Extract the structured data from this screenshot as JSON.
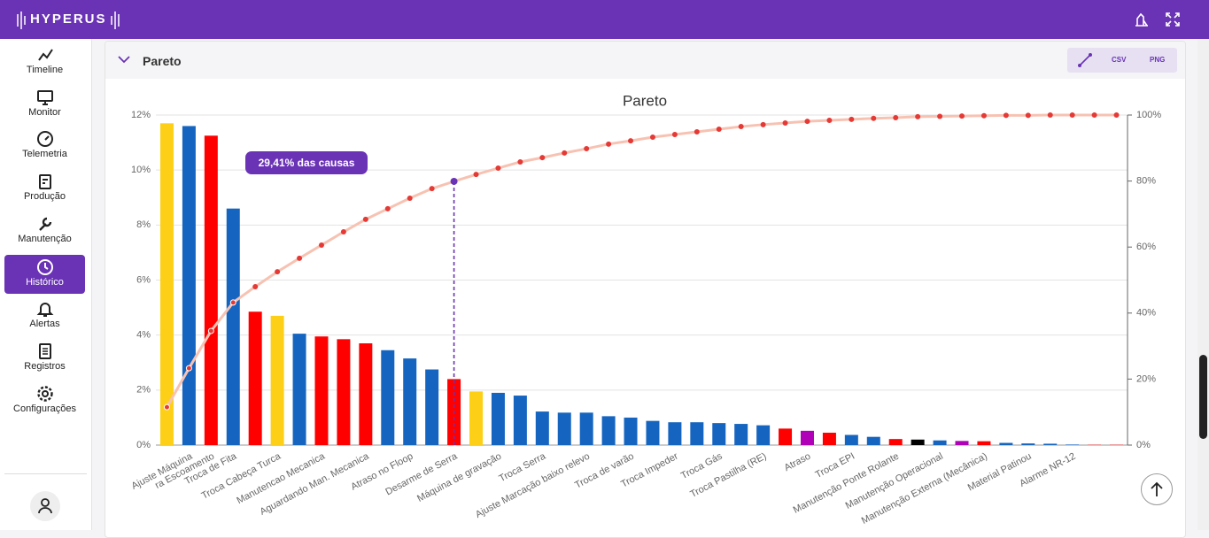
{
  "header": {
    "logo": "HYPERUS"
  },
  "sidebar": {
    "items": [
      "Timeline",
      "Monitor",
      "Telemetria",
      "Produção",
      "Manutenção",
      "Histórico",
      "Alertas",
      "Registros",
      "Configurações"
    ],
    "active": "Histórico"
  },
  "panel": {
    "title": "Pareto",
    "buttons": [
      "CSV",
      "PNG"
    ]
  },
  "chart_data": {
    "type": "pareto",
    "title": "Pareto",
    "categories": [
      null,
      "Ajuste Máquina",
      "ra Escoamento",
      "Troca de Fita",
      null,
      "Troca Cabeça Turca",
      null,
      "Manutencao Mecanica",
      null,
      "Aguardando Man. Mecanica",
      null,
      "Atraso no Floop",
      null,
      "Desarme de Serra",
      null,
      "Máquina de gravação",
      null,
      "Troca Serra",
      null,
      "Ajuste Marcação baixo relevo",
      null,
      "Troca de varão",
      null,
      "Troca Impeder",
      null,
      "Troca Gás",
      null,
      "Troca Pastilha (RE)",
      null,
      "Atraso",
      null,
      "Troca EPI",
      null,
      "Manutenção Ponte Rolante",
      null,
      "Manutenção Operacional",
      null,
      "Manutenção Externa (Mecânica)",
      null,
      "Material Patinou",
      null,
      "Alarme NR-12",
      null,
      null
    ],
    "series": [
      {
        "type": "bar",
        "values": [
          11.7,
          11.6,
          11.25,
          8.6,
          4.85,
          4.7,
          4.05,
          3.95,
          3.85,
          3.7,
          3.45,
          3.15,
          2.75,
          2.4,
          1.95,
          1.9,
          1.8,
          1.22,
          1.18,
          1.18,
          1.05,
          1.0,
          0.88,
          0.83,
          0.83,
          0.8,
          0.77,
          0.72,
          0.6,
          0.52,
          0.45,
          0.37,
          0.3,
          0.22,
          0.2,
          0.17,
          0.15,
          0.14,
          0.08,
          0.06,
          0.05,
          0.02,
          0.01,
          0.01
        ],
        "colors": [
          "#fdd017",
          "#1565c0",
          "#ff0000",
          "#1565c0",
          "#ff0000",
          "#fdd017",
          "#1565c0",
          "#ff0000",
          "#ff0000",
          "#ff0000",
          "#1565c0",
          "#1565c0",
          "#1565c0",
          "#ff0000",
          "#fdd017",
          "#1565c0",
          "#1565c0",
          "#1565c0",
          "#1565c0",
          "#1565c0",
          "#1565c0",
          "#1565c0",
          "#1565c0",
          "#1565c0",
          "#1565c0",
          "#1565c0",
          "#1565c0",
          "#1565c0",
          "#ff0000",
          "#b000b8",
          "#ff0000",
          "#1565c0",
          "#1565c0",
          "#ff0000",
          "#000000",
          "#1565c0",
          "#b000b8",
          "#ff0000",
          "#1565c0",
          "#1565c0",
          "#1565c0",
          "#1565c0",
          "#ff0000",
          "#ff0000"
        ]
      },
      {
        "type": "line",
        "axis": "y2",
        "color": "#f7c2b2",
        "point_color": "#e53935",
        "values": [
          11.5,
          23.3,
          34.6,
          43.2,
          48,
          52.5,
          56.6,
          60.6,
          64.6,
          68.4,
          71.6,
          74.8,
          77.7,
          79.9,
          82,
          83.9,
          85.8,
          87.1,
          88.5,
          89.8,
          91.2,
          92.2,
          93.3,
          94.1,
          94.9,
          95.7,
          96.5,
          97.1,
          97.6,
          98.1,
          98.4,
          98.7,
          99,
          99.2,
          99.5,
          99.6,
          99.7,
          99.8,
          99.9,
          99.9,
          100,
          100,
          100,
          100
        ]
      }
    ],
    "annotation": "29,41% das causas",
    "ylim": [
      0,
      12
    ],
    "yticks": [
      {
        "value": 0,
        "label": "0%"
      },
      {
        "value": 2,
        "label": "2%"
      },
      {
        "value": 4,
        "label": "4%"
      },
      {
        "value": 6,
        "label": "6%"
      },
      {
        "value": 8,
        "label": "8%"
      },
      {
        "value": 10,
        "label": "10%"
      },
      {
        "value": 12,
        "label": "12%"
      }
    ],
    "y2lim": [
      0,
      100
    ],
    "y2ticks": [
      {
        "value": 0,
        "label": "0%"
      },
      {
        "value": 20,
        "label": "20%"
      },
      {
        "value": 40,
        "label": "40%"
      },
      {
        "value": 60,
        "label": "60%"
      },
      {
        "value": 80,
        "label": "80%"
      },
      {
        "value": 100,
        "label": "100%"
      }
    ],
    "grid": true
  }
}
